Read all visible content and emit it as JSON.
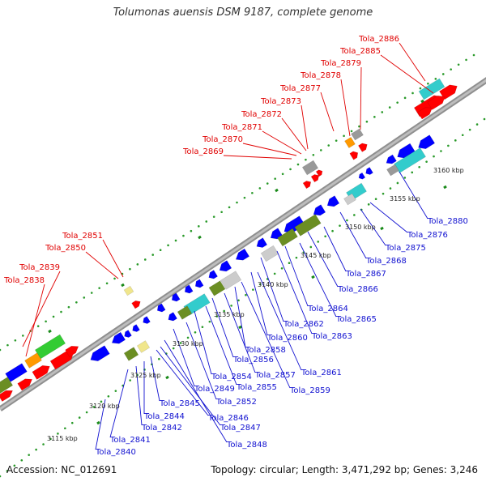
{
  "title": "Tolumonas auensis DSM 9187, complete genome",
  "footer": {
    "accession": "Accession: NC_012691",
    "summary": "Topology: circular; Length: 3,471,292 bp; Genes: 3,246"
  },
  "colors": {
    "backbone": "#8f8f8f",
    "forward_cds": "#ff0000",
    "reverse_cds": "#0000ff",
    "cog_green": "#33cc33",
    "cog_cyan": "#33cccc",
    "cog_olive": "#6b8e23",
    "cog_gray": "#999999",
    "cog_orange": "#ff9900",
    "cog_khaki": "#f0e68c",
    "forward_label": "#e00000",
    "reverse_label": "#1010d0",
    "tick_dots": "#2a9a2a"
  },
  "kbp_ticks": [
    "3115 kbp",
    "3120 kbp",
    "3125 kbp",
    "3130 kbp",
    "3135 kbp",
    "3140 kbp",
    "3145 kbp",
    "3150 kbp",
    "3155 kbp",
    "3160 kbp"
  ],
  "forward_labels": [
    "Tola_2886",
    "Tola_2885",
    "Tola_2879",
    "Tola_2878",
    "Tola_2877",
    "Tola_2873",
    "Tola_2872",
    "Tola_2871",
    "Tola_2870",
    "Tola_2869",
    "Tola_2851",
    "Tola_2850",
    "Tola_2839",
    "Tola_2838"
  ],
  "reverse_labels": [
    "Tola_2880",
    "Tola_2876",
    "Tola_2875",
    "Tola_2868",
    "Tola_2867",
    "Tola_2866",
    "Tola_2865",
    "Tola_2864",
    "Tola_2863",
    "Tola_2862",
    "Tola_2861",
    "Tola_2860",
    "Tola_2859",
    "Tola_2858",
    "Tola_2857",
    "Tola_2856",
    "Tola_2855",
    "Tola_2854",
    "Tola_2852",
    "Tola_2849",
    "Tola_2848",
    "Tola_2847",
    "Tola_2846",
    "Tola_2845",
    "Tola_2844",
    "Tola_2842",
    "Tola_2841",
    "Tola_2840"
  ]
}
